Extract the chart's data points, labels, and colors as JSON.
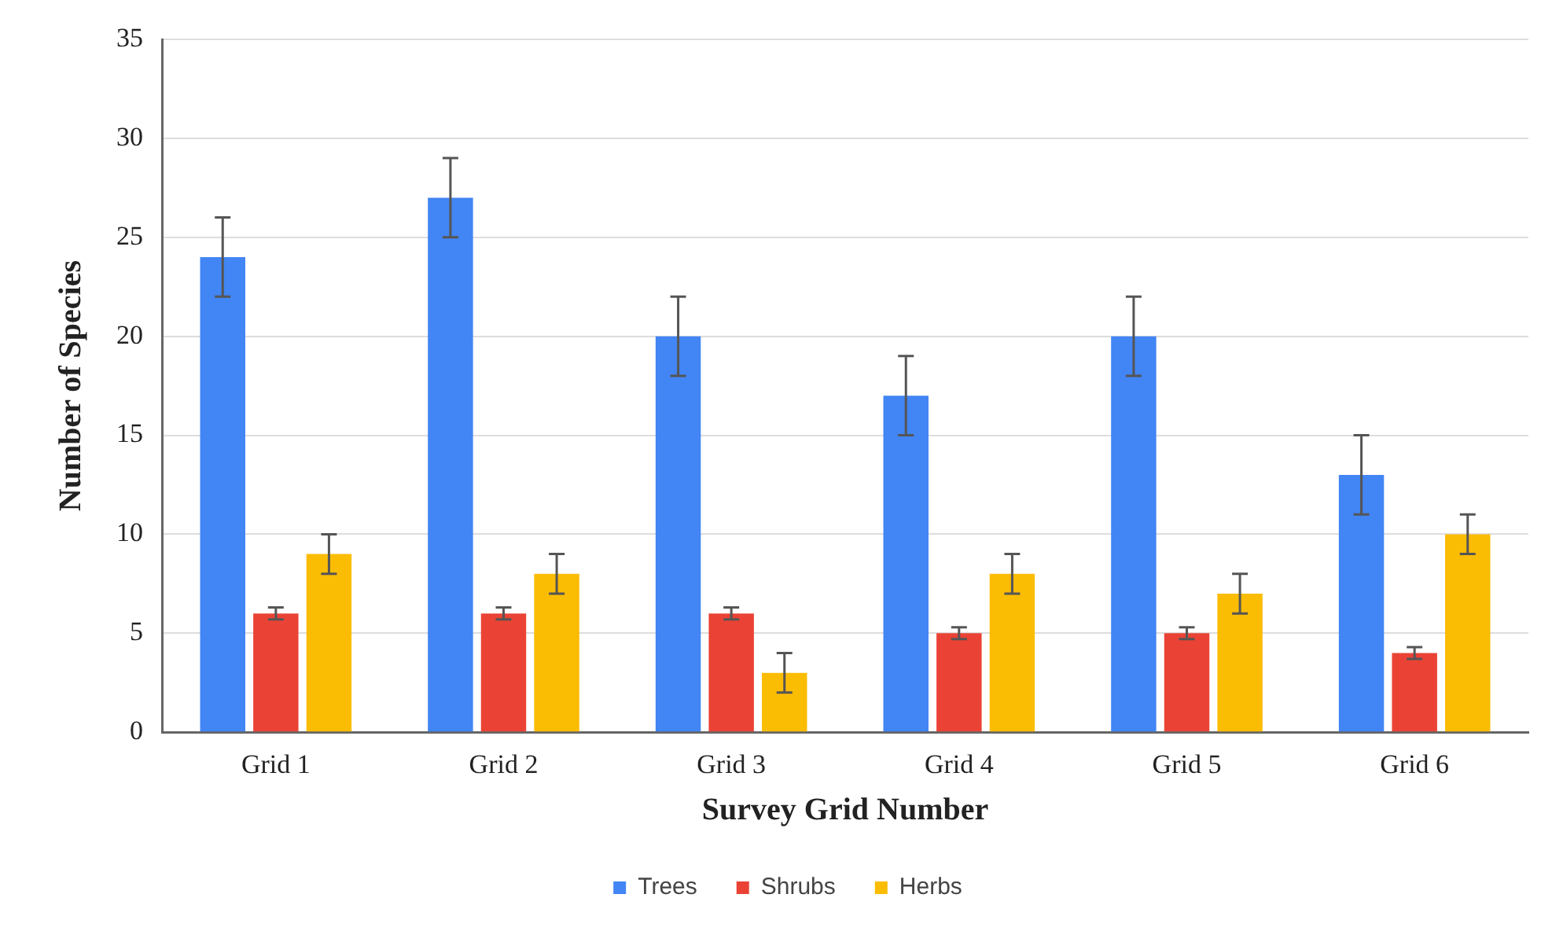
{
  "chart_data": {
    "type": "bar",
    "xlabel": "Survey Grid Number",
    "ylabel": "Number of Species",
    "categories": [
      "Grid 1",
      "Grid 2",
      "Grid 3",
      "Grid 4",
      "Grid 5",
      "Grid 6"
    ],
    "series": [
      {
        "name": "Trees",
        "color": "#4285f4",
        "values": [
          24,
          27,
          20,
          17,
          20,
          13
        ],
        "errors": [
          2,
          2,
          2,
          2,
          2,
          2
        ]
      },
      {
        "name": "Shrubs",
        "color": "#ea4335",
        "values": [
          6,
          6,
          6,
          5,
          5,
          4
        ],
        "errors": [
          0.3,
          0.3,
          0.3,
          0.3,
          0.3,
          0.3
        ]
      },
      {
        "name": "Herbs",
        "color": "#fbbc04",
        "values": [
          9,
          8,
          3,
          8,
          7,
          10
        ],
        "errors": [
          1,
          1,
          1,
          1,
          1,
          1
        ]
      }
    ],
    "ylim": [
      0,
      35
    ],
    "yticks": [
      0,
      5,
      10,
      15,
      20,
      25,
      30,
      35
    ],
    "grid": "y",
    "legend": "bottom"
  }
}
